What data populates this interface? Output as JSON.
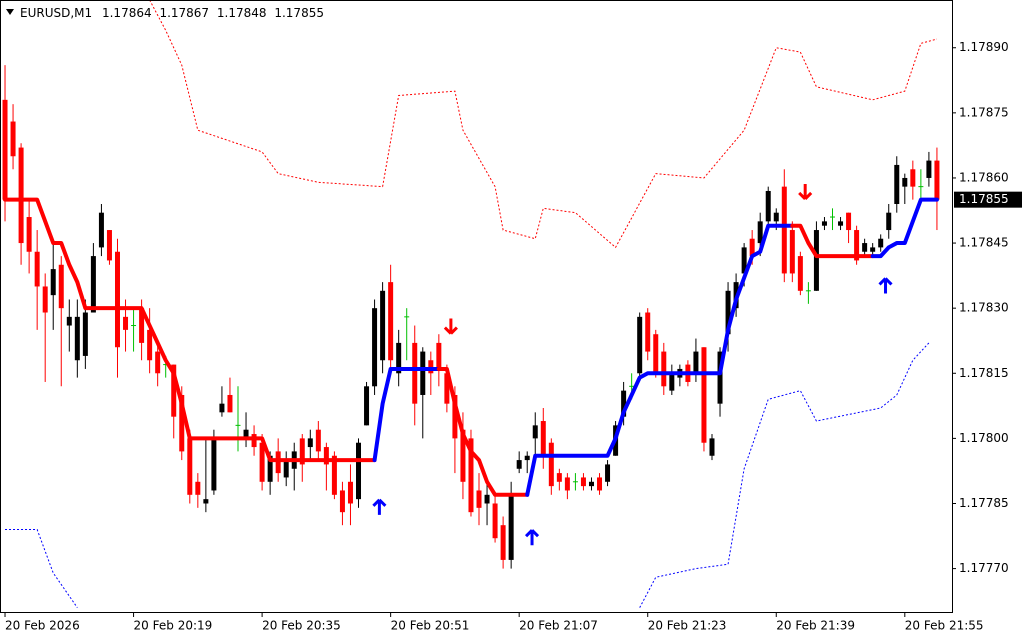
{
  "chart_data": {
    "type": "candlestick",
    "symbol": "EURUSD,M1",
    "colors": {
      "up": "#000000",
      "down": "#ff0000",
      "doji": "#00c000"
    },
    "xlim": [
      -0.625,
      117.875
    ],
    "ylim": [
      1.1776,
      1.17901
    ],
    "yticks": [
      {
        "value": 1.1789,
        "label": "1.17890"
      },
      {
        "value": 1.17875,
        "label": "1.17875"
      },
      {
        "value": 1.1786,
        "label": "1.17860"
      },
      {
        "value": 1.17845,
        "label": "1.17845"
      },
      {
        "value": 1.1783,
        "label": "1.17830"
      },
      {
        "value": 1.17815,
        "label": "1.17815"
      },
      {
        "value": 1.178,
        "label": "1.17800"
      },
      {
        "value": 1.17785,
        "label": "1.17785"
      },
      {
        "value": 1.1777,
        "label": "1.17770"
      }
    ],
    "xticks": [
      {
        "value": 0,
        "label": "20 Feb 2026"
      },
      {
        "value": 16,
        "label": "20 Feb 20:19"
      },
      {
        "value": 32,
        "label": "20 Feb 20:35"
      },
      {
        "value": 48,
        "label": "20 Feb 20:51"
      },
      {
        "value": 64,
        "label": "20 Feb 21:07"
      },
      {
        "value": 80,
        "label": "20 Feb 21:23"
      },
      {
        "value": 96,
        "label": "20 Feb 21:39"
      },
      {
        "value": 112,
        "label": "20 Feb 21:55"
      }
    ],
    "ohlc": [
      [
        1.17878,
        1.17886,
        1.1785,
        1.17855
      ],
      [
        1.17873,
        1.17877,
        1.17862,
        1.17865
      ],
      [
        1.17867,
        1.17868,
        1.1784,
        1.17845
      ],
      [
        1.17851,
        1.17855,
        1.17838,
        1.17843
      ],
      [
        1.17843,
        1.17848,
        1.17825,
        1.17835
      ],
      [
        1.17835,
        1.17838,
        1.17813,
        1.17829
      ],
      [
        1.17833,
        1.17845,
        1.17825,
        1.17839
      ],
      [
        1.1784,
        1.17842,
        1.17812,
        1.1783
      ],
      [
        1.17826,
        1.17832,
        1.1782,
        1.17828
      ],
      [
        1.17818,
        1.17832,
        1.17814,
        1.17828
      ],
      [
        1.17819,
        1.17832,
        1.17816,
        1.17829
      ],
      [
        1.17829,
        1.17845,
        1.17829,
        1.17842
      ],
      [
        1.17844,
        1.17854,
        1.17842,
        1.17852
      ],
      [
        1.17848,
        1.17848,
        1.1784,
        1.17841
      ],
      [
        1.17843,
        1.17846,
        1.17814,
        1.17821
      ],
      [
        1.17828,
        1.17832,
        1.1782,
        1.17825
      ],
      [
        1.17826,
        1.1783,
        1.1782,
        1.17826
      ],
      [
        1.1783,
        1.17832,
        1.17818,
        1.17822
      ],
      [
        1.17825,
        1.1783,
        1.17815,
        1.17818
      ],
      [
        1.1782,
        1.17822,
        1.17812,
        1.17815
      ],
      [
        1.17817,
        1.17819,
        1.17814,
        1.17817
      ],
      [
        1.17817,
        1.17817,
        1.178,
        1.17805
      ],
      [
        1.1781,
        1.17812,
        1.17795,
        1.17797
      ],
      [
        1.178,
        1.17802,
        1.17785,
        1.17787
      ],
      [
        1.1779,
        1.17792,
        1.17784,
        1.17787
      ],
      [
        1.17785,
        1.178,
        1.17783,
        1.17786
      ],
      [
        1.17788,
        1.17802,
        1.17787,
        1.178
      ],
      [
        1.17806,
        1.17812,
        1.17805,
        1.17808
      ],
      [
        1.1781,
        1.17814,
        1.17806,
        1.17806
      ],
      [
        1.17803,
        1.17812,
        1.17797,
        1.17803
      ],
      [
        1.178,
        1.17806,
        1.17798,
        1.17802
      ],
      [
        1.17801,
        1.17803,
        1.17796,
        1.17798
      ],
      [
        1.17799,
        1.17801,
        1.17788,
        1.1779
      ],
      [
        1.1779,
        1.17797,
        1.17787,
        1.17796
      ],
      [
        1.17797,
        1.178,
        1.1779,
        1.17792
      ],
      [
        1.17791,
        1.17797,
        1.17789,
        1.17795
      ],
      [
        1.17793,
        1.17799,
        1.17788,
        1.17797
      ],
      [
        1.178,
        1.17801,
        1.1779,
        1.17794
      ],
      [
        1.17798,
        1.17802,
        1.17795,
        1.178
      ],
      [
        1.17802,
        1.17804,
        1.17795,
        1.17797
      ],
      [
        1.17798,
        1.17799,
        1.17788,
        1.17794
      ],
      [
        1.17796,
        1.17797,
        1.17786,
        1.17787
      ],
      [
        1.17788,
        1.1779,
        1.1778,
        1.17783
      ],
      [
        1.1779,
        1.17794,
        1.1778,
        1.17785
      ],
      [
        1.17786,
        1.178,
        1.17784,
        1.17799
      ],
      [
        1.17803,
        1.17813,
        1.17803,
        1.17812
      ],
      [
        1.17812,
        1.17832,
        1.1781,
        1.1783
      ],
      [
        1.17818,
        1.17836,
        1.17815,
        1.17834
      ],
      [
        1.17836,
        1.1784,
        1.17815,
        1.17818
      ],
      [
        1.17815,
        1.17825,
        1.17812,
        1.17822
      ],
      [
        1.17828,
        1.1783,
        1.17818,
        1.17828
      ],
      [
        1.17822,
        1.17826,
        1.17803,
        1.17808
      ],
      [
        1.1781,
        1.17821,
        1.178,
        1.1782
      ],
      [
        1.17818,
        1.1782,
        1.1781,
        1.17815
      ],
      [
        1.17822,
        1.17824,
        1.17812,
        1.17816
      ],
      [
        1.17815,
        1.17817,
        1.17806,
        1.17808
      ],
      [
        1.1781,
        1.17812,
        1.17792,
        1.178
      ],
      [
        1.17802,
        1.17806,
        1.17786,
        1.1779
      ],
      [
        1.178,
        1.17802,
        1.17782,
        1.17783
      ],
      [
        1.17788,
        1.17792,
        1.1778,
        1.17784
      ],
      [
        1.17785,
        1.1779,
        1.1778,
        1.17787
      ],
      [
        1.17785,
        1.17787,
        1.17776,
        1.17777
      ],
      [
        1.1778,
        1.17782,
        1.1777,
        1.17772
      ],
      [
        1.17772,
        1.1779,
        1.1777,
        1.17787
      ],
      [
        1.17793,
        1.17797,
        1.17792,
        1.17795
      ],
      [
        1.17795,
        1.17797,
        1.17792,
        1.17796
      ],
      [
        1.178,
        1.17806,
        1.17795,
        1.17803
      ],
      [
        1.17804,
        1.17807,
        1.17793,
        1.17796
      ],
      [
        1.17799,
        1.178,
        1.17787,
        1.17789
      ],
      [
        1.17792,
        1.17793,
        1.17788,
        1.1779
      ],
      [
        1.17791,
        1.17792,
        1.17786,
        1.17788
      ],
      [
        1.1779,
        1.17792,
        1.17788,
        1.1779
      ],
      [
        1.17791,
        1.17792,
        1.17788,
        1.17789
      ],
      [
        1.17789,
        1.17791,
        1.17788,
        1.1779
      ],
      [
        1.17791,
        1.17792,
        1.17787,
        1.17788
      ],
      [
        1.1779,
        1.17795,
        1.17789,
        1.17794
      ],
      [
        1.17796,
        1.17804,
        1.17796,
        1.17803
      ],
      [
        1.17805,
        1.17813,
        1.17803,
        1.17811
      ],
      [
        1.17812,
        1.17815,
        1.17809,
        1.17812
      ],
      [
        1.17815,
        1.17829,
        1.17814,
        1.17828
      ],
      [
        1.17829,
        1.1783,
        1.17818,
        1.1782
      ],
      [
        1.17824,
        1.17825,
        1.17814,
        1.17815
      ],
      [
        1.1782,
        1.17822,
        1.1781,
        1.17812
      ],
      [
        1.17811,
        1.17817,
        1.1781,
        1.17815
      ],
      [
        1.17814,
        1.17817,
        1.17812,
        1.17816
      ],
      [
        1.17817,
        1.17818,
        1.17812,
        1.17813
      ],
      [
        1.17815,
        1.17823,
        1.17813,
        1.1782
      ],
      [
        1.17821,
        1.17821,
        1.17797,
        1.17799
      ],
      [
        1.17796,
        1.17801,
        1.17795,
        1.178
      ],
      [
        1.17808,
        1.17821,
        1.17805,
        1.1782
      ],
      [
        1.17824,
        1.17836,
        1.1782,
        1.17834
      ],
      [
        1.1783,
        1.17838,
        1.17828,
        1.17836
      ],
      [
        1.17838,
        1.17845,
        1.17835,
        1.17844
      ],
      [
        1.17846,
        1.17848,
        1.1784,
        1.17842
      ],
      [
        1.17845,
        1.17852,
        1.17842,
        1.1785
      ],
      [
        1.1785,
        1.17858,
        1.17849,
        1.17857
      ],
      [
        1.1785,
        1.17853,
        1.17848,
        1.17852
      ],
      [
        1.17858,
        1.17862,
        1.17836,
        1.17838
      ],
      [
        1.17848,
        1.1785,
        1.17836,
        1.17838
      ],
      [
        1.17842,
        1.17843,
        1.17833,
        1.17834
      ],
      [
        1.17834,
        1.17836,
        1.17831,
        1.17834
      ],
      [
        1.17834,
        1.1785,
        1.17834,
        1.17848
      ],
      [
        1.17849,
        1.17851,
        1.17848,
        1.1785
      ],
      [
        1.17851,
        1.17853,
        1.17848,
        1.17851
      ],
      [
        1.17849,
        1.17851,
        1.17848,
        1.1785
      ],
      [
        1.17852,
        1.17852,
        1.17845,
        1.17848
      ],
      [
        1.17848,
        1.17849,
        1.1784,
        1.17841
      ],
      [
        1.17843,
        1.17846,
        1.17842,
        1.17845
      ],
      [
        1.17843,
        1.17845,
        1.17842,
        1.17844
      ],
      [
        1.17844,
        1.17847,
        1.17843,
        1.17846
      ],
      [
        1.17848,
        1.17854,
        1.17846,
        1.17852
      ],
      [
        1.17854,
        1.17865,
        1.17852,
        1.17863
      ],
      [
        1.17858,
        1.17861,
        1.17854,
        1.1786
      ],
      [
        1.17862,
        1.17864,
        1.17855,
        1.17858
      ],
      [
        1.17858,
        1.17862,
        1.17855,
        1.17858
      ],
      [
        1.1786,
        1.17866,
        1.17858,
        1.17864
      ],
      [
        1.17864,
        1.17867,
        1.17848,
        1.17855
      ]
    ],
    "lines": [
      {
        "color": "#ff0000",
        "x": [
          0,
          4,
          5,
          6,
          7,
          8,
          9,
          10,
          17,
          18,
          19,
          20,
          21,
          22,
          23,
          32,
          33,
          46
        ],
        "values": [
          1.17855,
          1.17855,
          1.1785,
          1.17845,
          1.17845,
          1.1784,
          1.17836,
          1.1783,
          1.1783,
          1.17826,
          1.17822,
          1.17818,
          1.17815,
          1.17808,
          1.178,
          1.178,
          1.17795,
          1.17795
        ]
      },
      {
        "color": "#0000ff",
        "x": [
          46,
          47,
          48,
          54
        ],
        "values": [
          1.17795,
          1.17808,
          1.17816,
          1.17816
        ]
      },
      {
        "color": "#ff0000",
        "x": [
          54,
          55,
          56,
          57,
          58,
          59,
          60,
          61,
          65
        ],
        "values": [
          1.17816,
          1.17816,
          1.17808,
          1.17801,
          1.17797,
          1.17795,
          1.1779,
          1.17787,
          1.17787
        ]
      },
      {
        "color": "#0000ff",
        "x": [
          65,
          66,
          75,
          76,
          77,
          78,
          79,
          80,
          89,
          90,
          91,
          92,
          93,
          94,
          95,
          98
        ],
        "values": [
          1.17787,
          1.17796,
          1.17796,
          1.178,
          1.17806,
          1.1781,
          1.17814,
          1.17815,
          1.17815,
          1.17825,
          1.17832,
          1.17837,
          1.17842,
          1.17843,
          1.17849,
          1.17849
        ]
      },
      {
        "color": "#ff0000",
        "x": [
          98,
          99,
          100,
          101,
          108
        ],
        "values": [
          1.17849,
          1.17849,
          1.17845,
          1.17842,
          1.17842
        ]
      },
      {
        "color": "#0000ff",
        "x": [
          108,
          109,
          110,
          111,
          112,
          113,
          114,
          116
        ],
        "values": [
          1.17842,
          1.17842,
          1.17844,
          1.17845,
          1.17845,
          1.1785,
          1.17855,
          1.17855
        ]
      }
    ],
    "bands": [
      {
        "color": "#ff0000",
        "x": [
          18,
          20,
          22,
          24,
          32,
          34,
          39,
          47,
          49,
          56,
          57,
          61,
          62,
          66,
          67,
          71,
          76,
          81,
          87,
          92,
          96,
          99,
          101,
          108,
          112,
          114,
          116
        ],
        "values": [
          1.17901,
          1.17894,
          1.17886,
          1.17871,
          1.17866,
          1.17861,
          1.17859,
          1.17858,
          1.17879,
          1.1788,
          1.17871,
          1.17858,
          1.17848,
          1.17846,
          1.17853,
          1.17852,
          1.17844,
          1.17861,
          1.1786,
          1.17871,
          1.1789,
          1.17889,
          1.17881,
          1.17878,
          1.1788,
          1.17891,
          1.17892
        ]
      },
      {
        "color": "#0000ff",
        "x": [
          0,
          4,
          6,
          9
        ],
        "values": [
          1.17779,
          1.17779,
          1.17769,
          1.17761
        ]
      },
      {
        "color": "#0000ff",
        "x": [
          79,
          81,
          86,
          90,
          92,
          95,
          99,
          101,
          109,
          111,
          113,
          115
        ],
        "values": [
          1.17761,
          1.17768,
          1.1777,
          1.17771,
          1.17793,
          1.17809,
          1.17811,
          1.17804,
          1.17807,
          1.1781,
          1.17818,
          1.17822
        ]
      }
    ],
    "buy_arrows": {
      "color": "#0000ff",
      "x": [
        46.6,
        65.6,
        109.6
      ],
      "values": [
        1.17784,
        1.17777,
        1.17835
      ]
    },
    "sell_arrows": {
      "color": "#ff0000",
      "x": [
        55.5,
        99.6
      ],
      "values": [
        1.17826,
        1.17857
      ]
    }
  }
}
